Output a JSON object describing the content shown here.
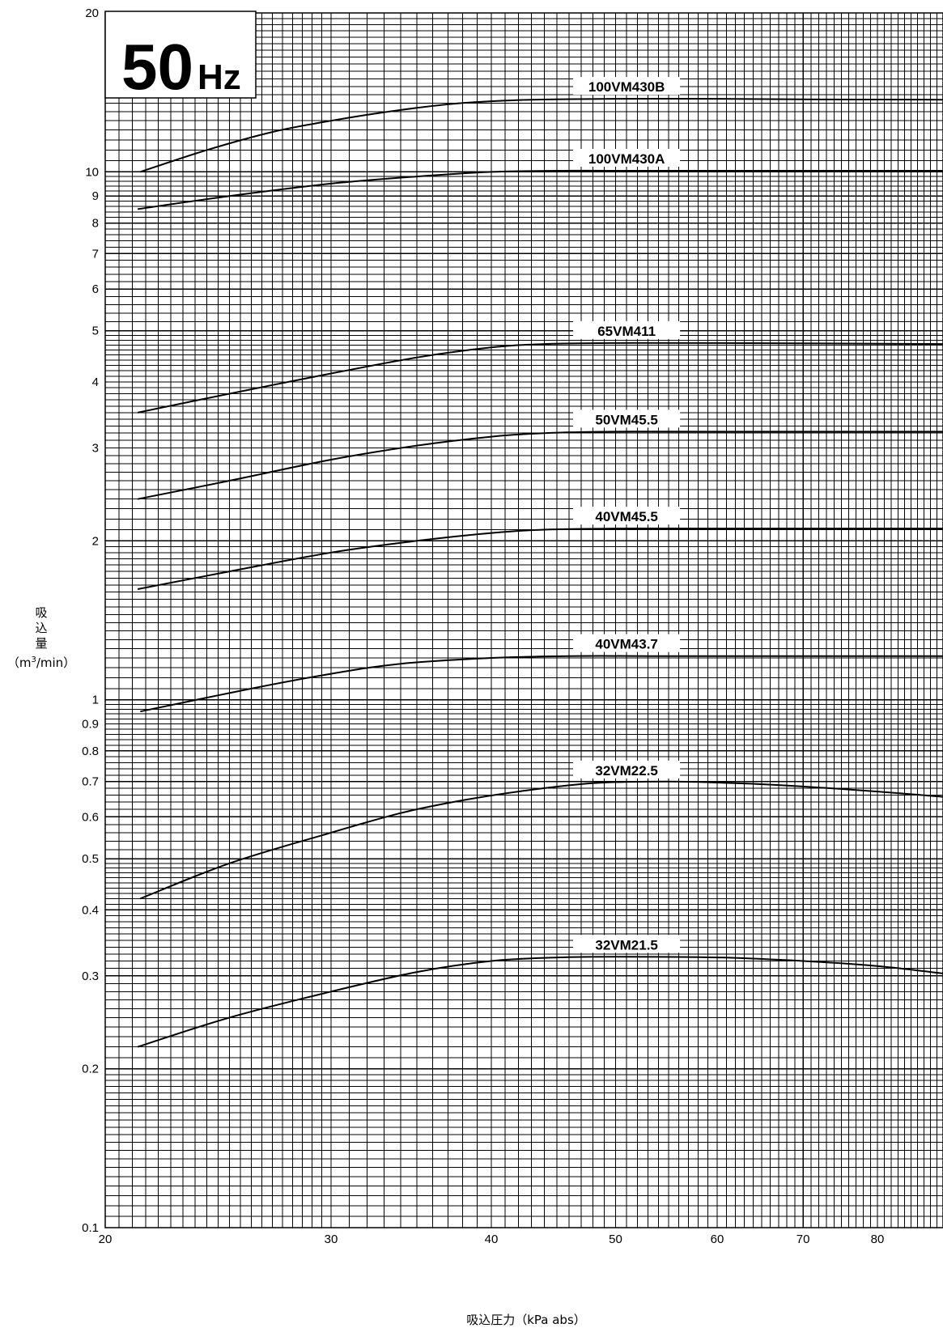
{
  "chart_data": {
    "type": "line",
    "title": "",
    "badge": {
      "number": "50",
      "unit": "Hz"
    },
    "xlabel": "吸込圧力（kPa abs）",
    "ylabel_lines": [
      "吸",
      "込",
      "量"
    ],
    "ylabel_unit_prefix": "（m",
    "ylabel_unit_sup": "3",
    "ylabel_unit_suffix": "/min）",
    "x_scale": "log",
    "y_scale": "log",
    "xlim": [
      20,
      90
    ],
    "ylim": [
      0.1,
      20
    ],
    "grid": true,
    "x_ticks": [
      {
        "value": 20,
        "label": "20"
      },
      {
        "value": 30,
        "label": "30"
      },
      {
        "value": 40,
        "label": "40"
      },
      {
        "value": 50,
        "label": "50"
      },
      {
        "value": 60,
        "label": "60"
      },
      {
        "value": 70,
        "label": "70"
      },
      {
        "value": 80,
        "label": "80"
      }
    ],
    "y_ticks": [
      {
        "value": 0.1,
        "label": "0.1"
      },
      {
        "value": 0.2,
        "label": "0.2"
      },
      {
        "value": 0.3,
        "label": "0.3"
      },
      {
        "value": 0.4,
        "label": "0.4"
      },
      {
        "value": 0.5,
        "label": "0.5"
      },
      {
        "value": 0.6,
        "label": "0.6"
      },
      {
        "value": 0.7,
        "label": "0.7"
      },
      {
        "value": 0.8,
        "label": "0.8"
      },
      {
        "value": 0.9,
        "label": "0.9"
      },
      {
        "value": 1,
        "label": "1"
      },
      {
        "value": 2,
        "label": "2"
      },
      {
        "value": 3,
        "label": "3"
      },
      {
        "value": 4,
        "label": "4"
      },
      {
        "value": 5,
        "label": "5"
      },
      {
        "value": 6,
        "label": "6"
      },
      {
        "value": 7,
        "label": "7"
      },
      {
        "value": 8,
        "label": "8"
      },
      {
        "value": 9,
        "label": "9"
      },
      {
        "value": 10,
        "label": "10"
      },
      {
        "value": 20,
        "label": "20"
      }
    ],
    "series": [
      {
        "name": "100VM430B",
        "label_x": 51,
        "points": [
          [
            21.3,
            10.0
          ],
          [
            24,
            11.0
          ],
          [
            27,
            11.9
          ],
          [
            30,
            12.5
          ],
          [
            34,
            13.1
          ],
          [
            38,
            13.5
          ],
          [
            43,
            13.7
          ],
          [
            50,
            13.75
          ],
          [
            60,
            13.75
          ],
          [
            70,
            13.72
          ],
          [
            90,
            13.7
          ]
        ]
      },
      {
        "name": "100VM430A",
        "label_x": 51,
        "points": [
          [
            21.2,
            8.5
          ],
          [
            25,
            9.0
          ],
          [
            30,
            9.5
          ],
          [
            35,
            9.8
          ],
          [
            40,
            10.0
          ],
          [
            45,
            10.05
          ],
          [
            50,
            10.05
          ],
          [
            60,
            10.05
          ],
          [
            90,
            10.05
          ]
        ]
      },
      {
        "name": "65VM411",
        "label_x": 51,
        "points": [
          [
            21.2,
            3.5
          ],
          [
            25,
            3.8
          ],
          [
            30,
            4.15
          ],
          [
            35,
            4.45
          ],
          [
            40,
            4.65
          ],
          [
            44,
            4.72
          ],
          [
            50,
            4.74
          ],
          [
            60,
            4.74
          ],
          [
            90,
            4.72
          ]
        ]
      },
      {
        "name": "50VM45.5",
        "label_x": 51,
        "points": [
          [
            21.2,
            2.4
          ],
          [
            25,
            2.6
          ],
          [
            30,
            2.85
          ],
          [
            35,
            3.03
          ],
          [
            40,
            3.15
          ],
          [
            44,
            3.2
          ],
          [
            50,
            3.22
          ],
          [
            60,
            3.22
          ],
          [
            90,
            3.22
          ]
        ]
      },
      {
        "name": "40VM45.5",
        "label_x": 51,
        "points": [
          [
            21.2,
            1.62
          ],
          [
            25,
            1.75
          ],
          [
            30,
            1.9
          ],
          [
            35,
            2.0
          ],
          [
            40,
            2.07
          ],
          [
            44,
            2.1
          ],
          [
            50,
            2.11
          ],
          [
            60,
            2.11
          ],
          [
            90,
            2.11
          ]
        ]
      },
      {
        "name": "40VM43.7",
        "label_x": 51,
        "points": [
          [
            21.3,
            0.95
          ],
          [
            26,
            1.05
          ],
          [
            30,
            1.12
          ],
          [
            34,
            1.17
          ],
          [
            40,
            1.2
          ],
          [
            46,
            1.21
          ],
          [
            55,
            1.21
          ],
          [
            70,
            1.21
          ],
          [
            90,
            1.21
          ]
        ]
      },
      {
        "name": "32VM22.5",
        "label_x": 51,
        "points": [
          [
            21.3,
            0.42
          ],
          [
            25,
            0.49
          ],
          [
            30,
            0.56
          ],
          [
            34,
            0.61
          ],
          [
            38,
            0.645
          ],
          [
            42,
            0.67
          ],
          [
            48,
            0.695
          ],
          [
            55,
            0.7
          ],
          [
            62,
            0.695
          ],
          [
            70,
            0.685
          ],
          [
            80,
            0.67
          ],
          [
            90,
            0.655
          ]
        ]
      },
      {
        "name": "32VM21.5",
        "label_x": 51,
        "points": [
          [
            21.2,
            0.22
          ],
          [
            25,
            0.25
          ],
          [
            30,
            0.28
          ],
          [
            35,
            0.305
          ],
          [
            40,
            0.32
          ],
          [
            45,
            0.325
          ],
          [
            50,
            0.326
          ],
          [
            60,
            0.325
          ],
          [
            70,
            0.32
          ],
          [
            80,
            0.313
          ],
          [
            90,
            0.303
          ]
        ]
      }
    ]
  }
}
